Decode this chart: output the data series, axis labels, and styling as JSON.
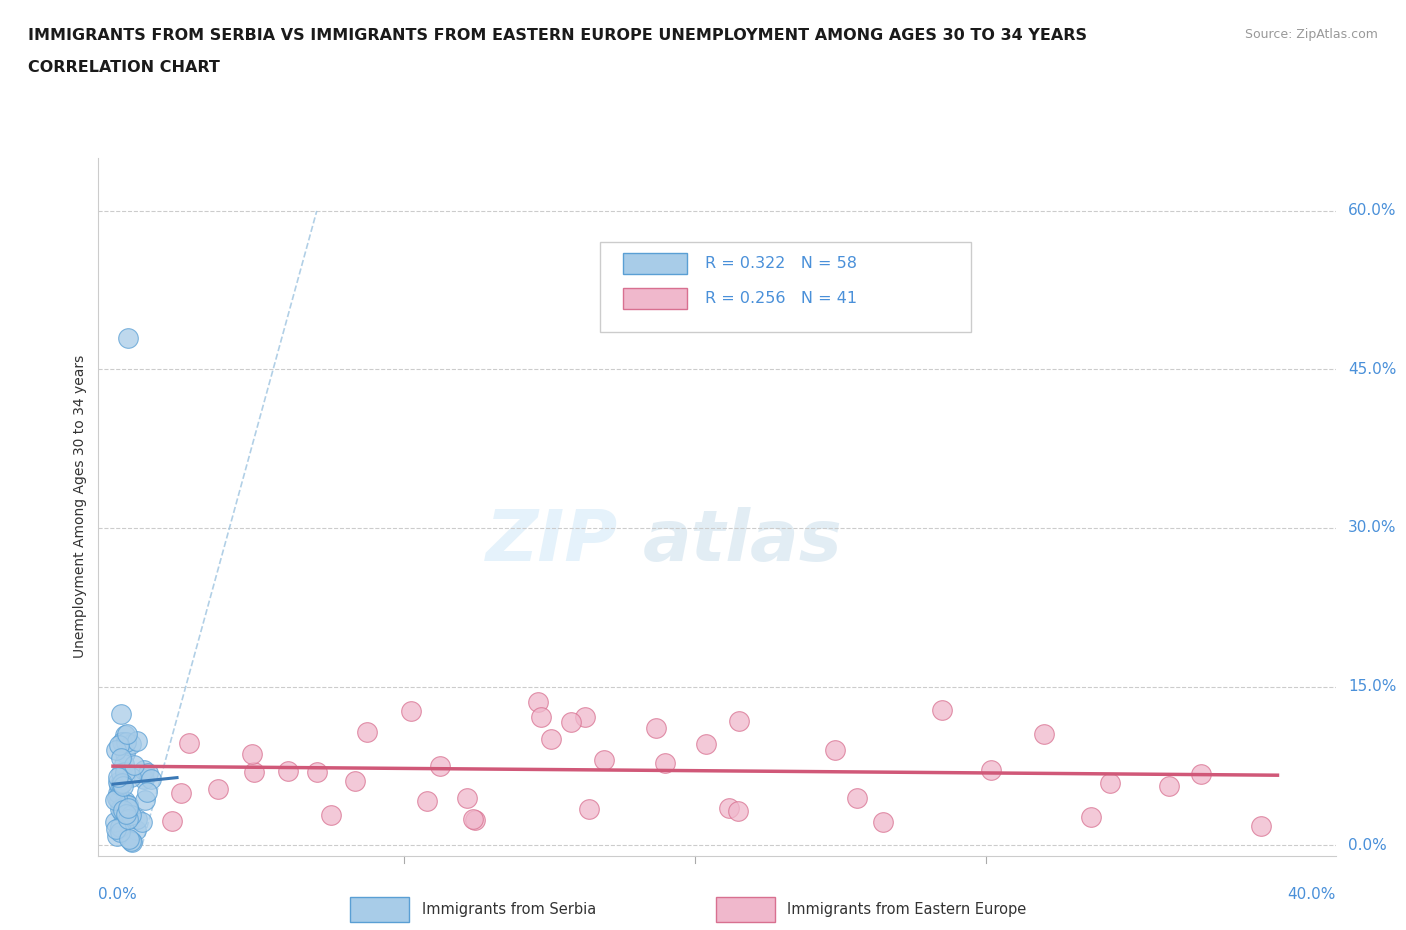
{
  "title_line1": "IMMIGRANTS FROM SERBIA VS IMMIGRANTS FROM EASTERN EUROPE UNEMPLOYMENT AMONG AGES 30 TO 34 YEARS",
  "title_line2": "CORRELATION CHART",
  "source": "Source: ZipAtlas.com",
  "ylabel": "Unemployment Among Ages 30 to 34 years",
  "ytick_labels": [
    "0.0%",
    "15.0%",
    "30.0%",
    "45.0%",
    "60.0%"
  ],
  "ytick_values": [
    0.0,
    0.15,
    0.3,
    0.45,
    0.6
  ],
  "serbia_R": 0.322,
  "serbia_N": 58,
  "eastern_R": 0.256,
  "eastern_N": 41,
  "xlim": [
    -0.005,
    0.42
  ],
  "ylim": [
    -0.01,
    0.65
  ],
  "serbia_color": "#a8cce8",
  "serbia_edge_color": "#5a9fd4",
  "serbia_line_color": "#3a78b5",
  "eastern_color": "#f0b8cc",
  "eastern_edge_color": "#d87090",
  "eastern_line_color": "#d05878",
  "diag_line_color": "#9ec4e0",
  "grid_color": "#cccccc",
  "background_color": "#ffffff",
  "title_color": "#1a1a1a",
  "source_color": "#999999",
  "axis_label_color": "#4a90d9",
  "right_tick_color": "#4a90d9"
}
